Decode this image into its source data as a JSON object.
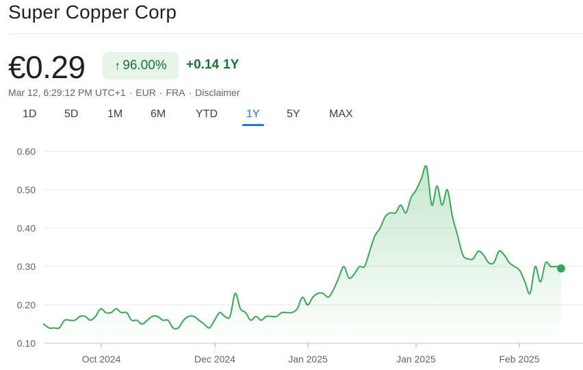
{
  "header": {
    "title": "Super Copper Corp",
    "price": "€0.29",
    "change_pct": "96.00%",
    "change_abs": "+0.14",
    "change_period": "1Y",
    "meta": {
      "timestamp": "Mar 12, 6:29:12 PM UTC+1",
      "currency": "EUR",
      "exchange": "FRA",
      "disclaimer": "Disclaimer"
    }
  },
  "ranges": [
    "1D",
    "5D",
    "1M",
    "6M",
    "YTD",
    "1Y",
    "5Y",
    "MAX"
  ],
  "active_range": "1Y",
  "colors": {
    "line": "#34a853",
    "positive": "#137333",
    "pill_bg": "#e6f4ea",
    "active_tab": "#1a73e8"
  },
  "chart_data": {
    "type": "area",
    "title": "",
    "xlabel": "",
    "ylabel": "",
    "ylim": [
      0.1,
      0.6
    ],
    "y_ticks": [
      "0.60",
      "0.50",
      "0.40",
      "0.30",
      "0.20",
      "0.10"
    ],
    "x_ticks": [
      "Oct 2024",
      "Dec 2024",
      "Jan 2025",
      "Jan 2025",
      "Feb 2025"
    ],
    "grid": true,
    "series": [
      {
        "values": [
          0.15,
          0.14,
          0.14,
          0.14,
          0.16,
          0.16,
          0.16,
          0.17,
          0.17,
          0.16,
          0.17,
          0.19,
          0.18,
          0.18,
          0.19,
          0.18,
          0.18,
          0.16,
          0.16,
          0.15,
          0.16,
          0.17,
          0.17,
          0.16,
          0.16,
          0.14,
          0.14,
          0.16,
          0.17,
          0.17,
          0.16,
          0.15,
          0.14,
          0.16,
          0.18,
          0.17,
          0.17,
          0.23,
          0.19,
          0.18,
          0.16,
          0.17,
          0.16,
          0.17,
          0.17,
          0.17,
          0.18,
          0.18,
          0.18,
          0.19,
          0.22,
          0.2,
          0.22,
          0.23,
          0.23,
          0.22,
          0.24,
          0.27,
          0.3,
          0.27,
          0.28,
          0.3,
          0.3,
          0.34,
          0.38,
          0.4,
          0.43,
          0.44,
          0.44,
          0.46,
          0.44,
          0.48,
          0.5,
          0.53,
          0.56,
          0.46,
          0.51,
          0.46,
          0.5,
          0.43,
          0.38,
          0.33,
          0.32,
          0.32,
          0.34,
          0.33,
          0.31,
          0.31,
          0.34,
          0.33,
          0.31,
          0.3,
          0.29,
          0.26,
          0.23,
          0.3,
          0.26,
          0.31,
          0.3,
          0.3,
          0.295
        ]
      }
    ]
  }
}
